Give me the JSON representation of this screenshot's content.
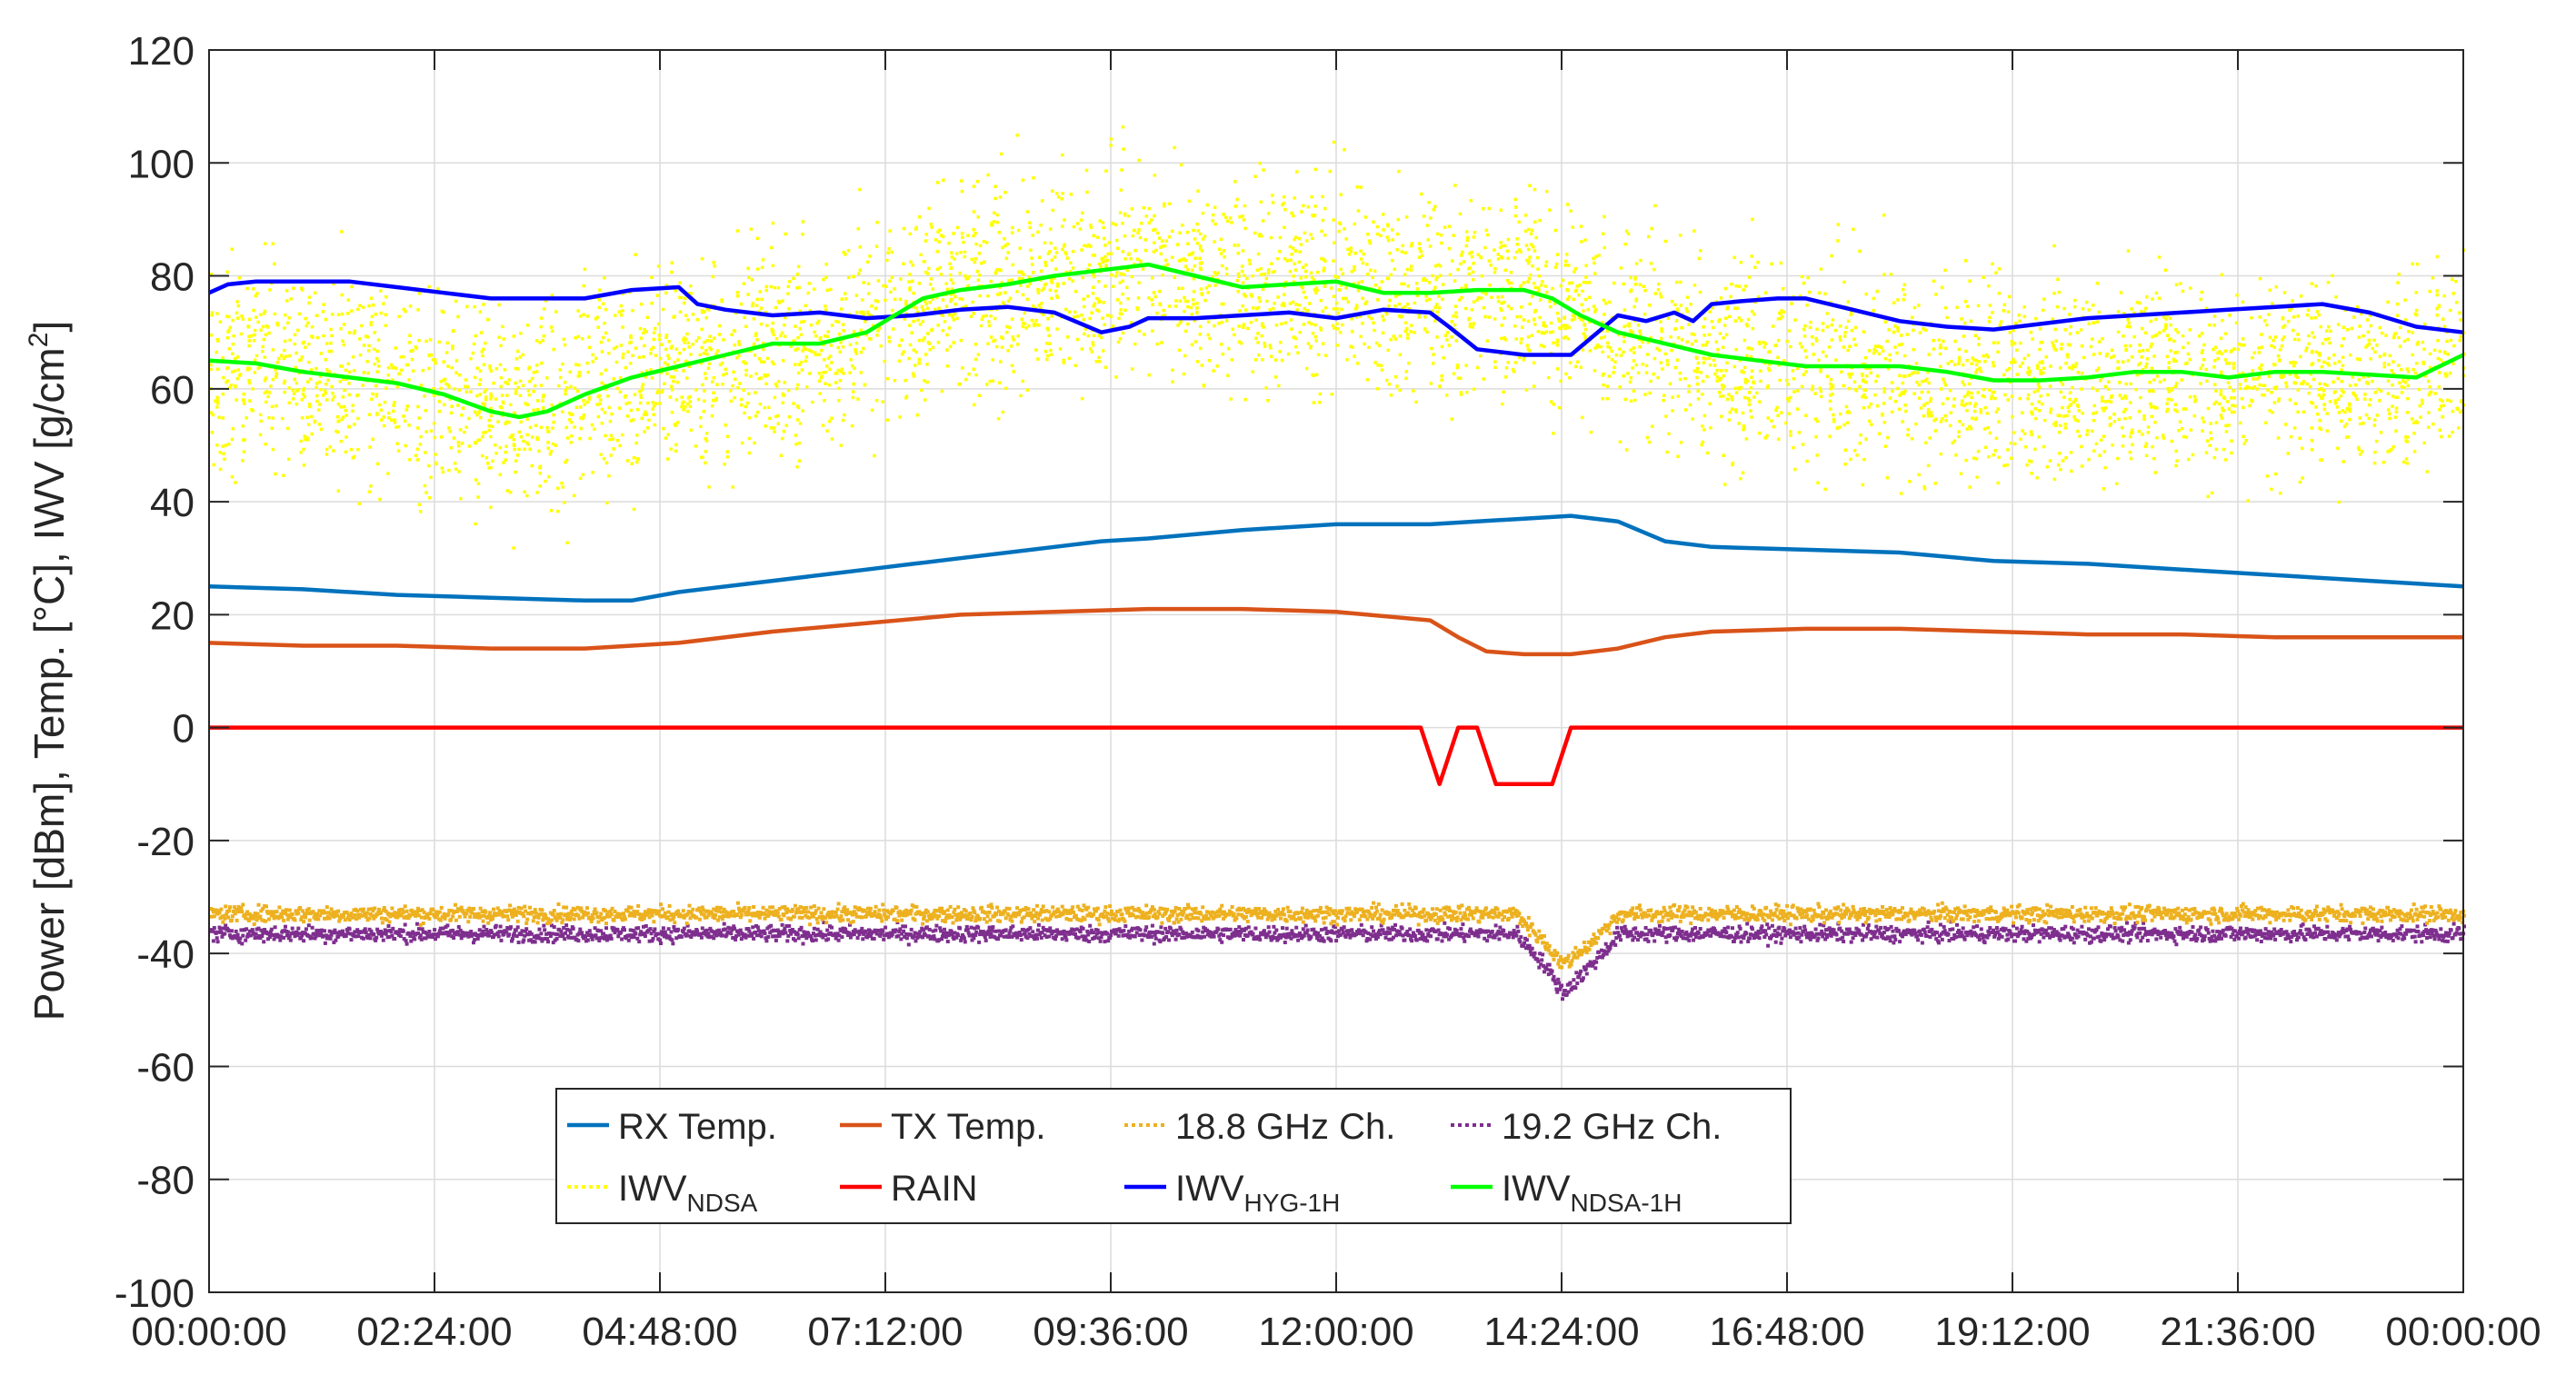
{
  "chart_data": {
    "type": "line",
    "title": "",
    "xlabel": "",
    "ylabel": "Power [dBm], Temp. [°C], IWV [g/cm²]",
    "ylabel_parts": {
      "main": "Power [dBm], Temp. [°C], IWV [g/cm",
      "sup": "2",
      "close": "]"
    },
    "xlim_hours": [
      0,
      24
    ],
    "ylim": [
      -100,
      120
    ],
    "grid": true,
    "legend_placement": "bottom-left",
    "x_tick_hours": [
      0,
      2.4,
      4.8,
      7.2,
      9.6,
      12,
      14.4,
      16.8,
      19.2,
      21.6,
      24
    ],
    "x_tick_labels": [
      "00:00:00",
      "02:24:00",
      "04:48:00",
      "07:12:00",
      "09:36:00",
      "12:00:00",
      "14:24:00",
      "16:48:00",
      "19:12:00",
      "21:36:00",
      "00:00:00"
    ],
    "y_ticks": [
      -100,
      -80,
      -60,
      -40,
      -20,
      0,
      20,
      40,
      60,
      80,
      100,
      120
    ],
    "y_tick_labels": [
      "-100",
      "-80",
      "-60",
      "-40",
      "-20",
      "0",
      "20",
      "40",
      "60",
      "80",
      "100",
      "120"
    ],
    "series": [
      {
        "name": "RX Temp.",
        "color": "#0072BD",
        "style": "line",
        "x": [
          0,
          1,
          2,
          3,
          4,
          4.5,
          5,
          6,
          7,
          7.5,
          8,
          9,
          9.5,
          10,
          11,
          12,
          13,
          14,
          14.5,
          15,
          15.5,
          16,
          17,
          18,
          19,
          20,
          21,
          22,
          23,
          24
        ],
        "y": [
          25,
          24.5,
          23.5,
          23,
          22.5,
          22.5,
          24,
          26,
          28,
          29,
          30,
          32,
          33,
          33.5,
          35,
          36,
          36,
          37,
          37.5,
          36.5,
          33,
          32,
          31.5,
          31,
          29.5,
          29,
          28,
          27,
          26,
          25
        ]
      },
      {
        "name": "TX Temp.",
        "color": "#D95319",
        "style": "line",
        "x": [
          0,
          1,
          2,
          3,
          4,
          5,
          6,
          7,
          8,
          9,
          10,
          11,
          12,
          13,
          13.3,
          13.6,
          14,
          14.5,
          15,
          15.5,
          16,
          17,
          18,
          19,
          20,
          21,
          22,
          23,
          24
        ],
        "y": [
          15,
          14.5,
          14.5,
          14,
          14,
          15,
          17,
          18.5,
          20,
          20.5,
          21,
          21,
          20.5,
          19,
          16,
          13.5,
          13,
          13,
          14,
          16,
          17,
          17.5,
          17.5,
          17,
          16.5,
          16.5,
          16,
          16,
          16
        ]
      },
      {
        "name": "18.8 GHz Ch.",
        "color": "#EDB120",
        "style": "dotted",
        "base_y": -33,
        "noise": 1.2,
        "dip_x": [
          13.9,
          14.2,
          14.4,
          14.7,
          15.0
        ],
        "dip_y": [
          -33,
          -38,
          -42,
          -38,
          -33
        ]
      },
      {
        "name": "19.2 GHz Ch.",
        "color": "#7E2F8E",
        "style": "dotted",
        "base_y": -36.5,
        "noise": 1.2,
        "dip_x": [
          13.9,
          14.2,
          14.4,
          14.7,
          15.0
        ],
        "dip_y": [
          -36.5,
          -42,
          -47,
          -42,
          -36.5
        ]
      },
      {
        "name": "IWV_NDSA",
        "name_main": "IWV",
        "name_sub": "NDSA",
        "color": "#FFFF00",
        "style": "scatter",
        "spread": 9,
        "note": "dense scatter around the IWV_NDSA-1H mean"
      },
      {
        "name": "RAIN",
        "color": "#FF0000",
        "style": "line",
        "x": [
          0,
          12.9,
          13.1,
          13.3,
          13.5,
          13.7,
          13.9,
          14.3,
          14.5,
          24
        ],
        "y": [
          0,
          0,
          -10,
          0,
          0,
          -10,
          -10,
          -10,
          0,
          0
        ]
      },
      {
        "name": "IWV_HYG-1H",
        "name_main": "IWV",
        "name_sub": "HYG-1H",
        "color": "#0000FF",
        "style": "line",
        "x": [
          0,
          0.2,
          0.5,
          1,
          1.5,
          2,
          2.5,
          3,
          3.5,
          4,
          4.5,
          5,
          5.2,
          5.5,
          6,
          6.5,
          7,
          7.5,
          8,
          8.5,
          9,
          9.5,
          9.8,
          10,
          10.5,
          11,
          11.5,
          12,
          12.5,
          13,
          13.2,
          13.5,
          14,
          14.5,
          15,
          15.3,
          15.6,
          15.8,
          16,
          16.3,
          16.7,
          17,
          17.5,
          18,
          18.5,
          19,
          19.5,
          20,
          20.5,
          21,
          21.5,
          22,
          22.5,
          23,
          23.5,
          24
        ],
        "y": [
          77,
          78.5,
          79,
          79,
          79,
          78,
          77,
          76,
          76,
          76,
          77.5,
          78,
          75,
          74,
          73,
          73.5,
          72.5,
          73,
          74,
          74.5,
          73.5,
          70,
          71,
          72.5,
          72.5,
          73,
          73.5,
          72.5,
          74,
          73.5,
          71,
          67,
          66,
          66,
          73,
          72,
          73.5,
          72,
          75,
          75.5,
          76,
          76,
          74,
          72,
          71,
          70.5,
          71.5,
          72.5,
          73,
          73.5,
          74,
          74.5,
          75,
          73.5,
          71,
          70
        ]
      },
      {
        "name": "IWV_NDSA-1H",
        "name_main": "IWV",
        "name_sub": "NDSA-1H",
        "color": "#00FF00",
        "style": "line",
        "x": [
          0,
          0.5,
          1,
          1.5,
          2,
          2.5,
          3,
          3.3,
          3.6,
          4,
          4.5,
          5,
          5.5,
          6,
          6.5,
          7,
          7.3,
          7.6,
          8,
          8.5,
          9,
          9.5,
          10,
          10.5,
          11,
          11.5,
          12,
          12.5,
          13,
          13.5,
          14,
          14.3,
          14.6,
          15,
          15.5,
          16,
          16.5,
          17,
          17.5,
          18,
          18.5,
          19,
          19.5,
          20,
          20.5,
          21,
          21.5,
          22,
          22.5,
          23,
          23.5,
          24
        ],
        "y": [
          65,
          64.5,
          63,
          62,
          61,
          59,
          56,
          55,
          56,
          59,
          62,
          64,
          66,
          68,
          68,
          70,
          73,
          76,
          77.5,
          78.5,
          80,
          81,
          82,
          80,
          78,
          78.5,
          79,
          77,
          77,
          77.5,
          77.5,
          76,
          73,
          70,
          68,
          66,
          65,
          64,
          64,
          64,
          63,
          61.5,
          61.5,
          62,
          63,
          63,
          62,
          63,
          63,
          62.5,
          62,
          66
        ]
      }
    ],
    "legend_rows": [
      [
        "RX Temp.",
        "TX Temp.",
        "18.8 GHz Ch.",
        "19.2 GHz Ch."
      ],
      [
        "IWV_NDSA",
        "RAIN",
        "IWV_HYG-1H",
        "IWV_NDSA-1H"
      ]
    ]
  }
}
